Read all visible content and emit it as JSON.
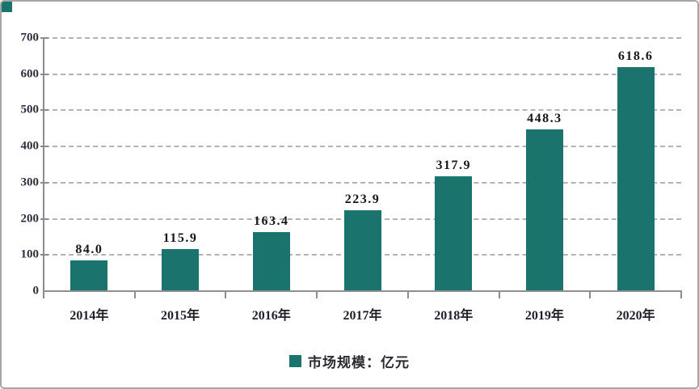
{
  "chart_data": {
    "type": "bar",
    "categories": [
      "2014年",
      "2015年",
      "2016年",
      "2017年",
      "2018年",
      "2019年",
      "2020年"
    ],
    "values": [
      84.0,
      115.9,
      163.4,
      223.9,
      317.9,
      448.3,
      618.6
    ],
    "value_labels": [
      "84.0",
      "115.9",
      "163.4",
      "223.9",
      "317.9",
      "448.3",
      "618.6"
    ],
    "title": "",
    "xlabel": "",
    "ylabel": "",
    "ylim": [
      0,
      700
    ],
    "yticks": [
      0,
      100,
      200,
      300,
      400,
      500,
      600,
      700
    ],
    "ytick_labels": [
      "0",
      "100",
      "200",
      "300",
      "400",
      "500",
      "600",
      "700"
    ],
    "grid": "horizontal-dashed",
    "legend": {
      "label": "市场规模：亿元",
      "position": "bottom-center"
    },
    "colors": {
      "bar": "#1B736E",
      "axis": "#8C8C8C",
      "gridline": "#B3B3B3",
      "tick_text": "#2D2D3D",
      "value_text": "#16161F",
      "legend_text": "#2A2A33",
      "frame_border": "#A6A6A6",
      "corner_square": "#1B736E"
    }
  }
}
